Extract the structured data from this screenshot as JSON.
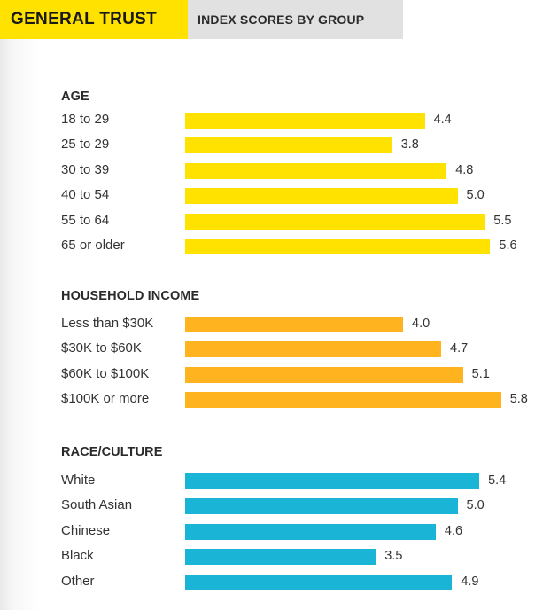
{
  "header": {
    "title": "GENERAL TRUST",
    "subtitle": "INDEX SCORES BY GROUP"
  },
  "colors": {
    "title_bg": "#ffe200",
    "subtitle_bg": "#e1e1e1",
    "age": "#ffe200",
    "income": "#ffb31e",
    "race": "#19b4d6"
  },
  "chart_data": {
    "type": "bar",
    "orientation": "horizontal",
    "title": "GENERAL TRUST",
    "subtitle": "INDEX SCORES BY GROUP",
    "xlim": [
      0,
      6.3
    ],
    "grid": false,
    "groups": [
      {
        "name": "AGE",
        "color": "#ffe200",
        "categories": [
          "18 to 29",
          "25 to 29",
          "30 to 39",
          "40 to 54",
          "55 to 64",
          "65 or older"
        ],
        "values": [
          4.4,
          3.8,
          4.8,
          5.0,
          5.5,
          5.6
        ],
        "value_labels": [
          "4.4",
          "3.8",
          "4.8",
          "5.0",
          "5.5",
          "5.6"
        ]
      },
      {
        "name": "HOUSEHOLD INCOME",
        "color": "#ffb31e",
        "categories": [
          "Less than $30K",
          "$30K to $60K",
          "$60K to $100K",
          "$100K or more"
        ],
        "values": [
          4.0,
          4.7,
          5.1,
          5.8
        ],
        "value_labels": [
          "4.0",
          "4.7",
          "5.1",
          "5.8"
        ]
      },
      {
        "name": "RACE/CULTURE",
        "color": "#19b4d6",
        "categories": [
          "White",
          "South Asian",
          "Chinese",
          "Black",
          "Other"
        ],
        "values": [
          5.4,
          5.0,
          4.6,
          3.5,
          4.9
        ],
        "value_labels": [
          "5.4",
          "5.0",
          "4.6",
          "3.5",
          "4.9"
        ]
      }
    ]
  }
}
